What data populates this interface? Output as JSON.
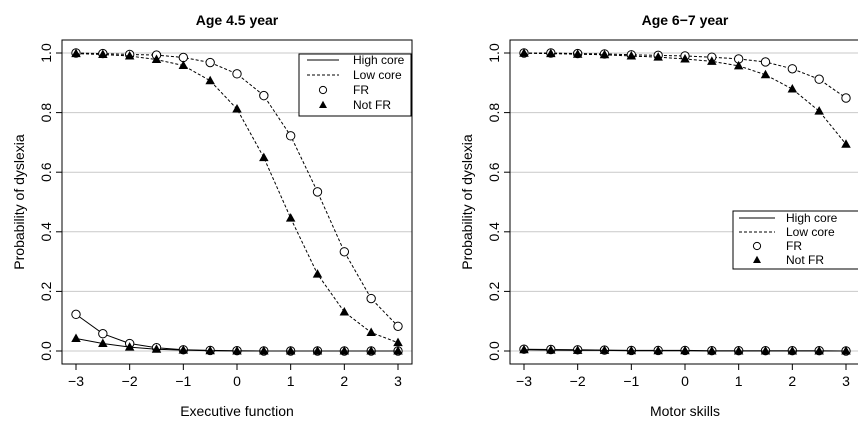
{
  "chart_data": [
    {
      "type": "line",
      "title": "Age 4.5 year",
      "xlabel": "Executive function",
      "ylabel": "Probability of dyslexia",
      "xlim": [
        -3,
        3
      ],
      "ylim": [
        0,
        1
      ],
      "x_ticks": [
        "−3",
        "−2",
        "−1",
        "0",
        "1",
        "2",
        "3"
      ],
      "y_ticks": [
        "0.0",
        "0.2",
        "0.4",
        "0.6",
        "0.8",
        "1.0"
      ],
      "grid": "horizontal",
      "legend_position": "top-right",
      "legend": [
        "High core",
        "Low core",
        "FR",
        "Not FR"
      ],
      "x": [
        -3,
        -2.5,
        -2,
        -1.5,
        -1,
        -0.5,
        0,
        0.5,
        1,
        1.5,
        2,
        2.5,
        3
      ],
      "series": [
        {
          "name": "High core FR",
          "core": "high",
          "group": "FR",
          "marker": "circle",
          "values": [
            0.123,
            0.058,
            0.025,
            0.011,
            0.004,
            0.002,
            0.001,
            0.0,
            0.0,
            0.0,
            0.0,
            0.0,
            0.0
          ]
        },
        {
          "name": "High core Not FR",
          "core": "high",
          "group": "Not FR",
          "marker": "triangle",
          "values": [
            0.042,
            0.025,
            0.013,
            0.006,
            0.003,
            0.001,
            0.0,
            0.0,
            0.0,
            0.0,
            0.0,
            0.0,
            0.0
          ]
        },
        {
          "name": "Low core FR",
          "core": "low",
          "group": "FR",
          "marker": "circle",
          "values": [
            1.0,
            0.998,
            0.995,
            0.993,
            0.985,
            0.968,
            0.93,
            0.857,
            0.722,
            0.534,
            0.333,
            0.176,
            0.083
          ]
        },
        {
          "name": "Low core Not FR",
          "core": "low",
          "group": "Not FR",
          "marker": "triangle",
          "values": [
            0.998,
            0.995,
            0.99,
            0.978,
            0.958,
            0.907,
            0.812,
            0.649,
            0.446,
            0.258,
            0.131,
            0.062,
            0.028
          ]
        }
      ]
    },
    {
      "type": "line",
      "title": "Age 6−7 year",
      "xlabel": "Motor skills",
      "ylabel": "Probability of dyslexia",
      "xlim": [
        -3,
        3
      ],
      "ylim": [
        0,
        1
      ],
      "x_ticks": [
        "−3",
        "−2",
        "−1",
        "0",
        "1",
        "2",
        "3"
      ],
      "y_ticks": [
        "0.0",
        "0.2",
        "0.4",
        "0.6",
        "0.8",
        "1.0"
      ],
      "grid": "horizontal",
      "legend_position": "right",
      "legend": [
        "High core",
        "Low core",
        "FR",
        "Not FR"
      ],
      "x": [
        -3,
        -2.5,
        -2,
        -1.5,
        -1,
        -0.5,
        0,
        0.5,
        1,
        1.5,
        2,
        2.5,
        3
      ],
      "series": [
        {
          "name": "High core FR",
          "core": "high",
          "group": "FR",
          "marker": "circle",
          "values": [
            0.006,
            0.005,
            0.004,
            0.003,
            0.002,
            0.002,
            0.002,
            0.001,
            0.001,
            0.001,
            0.001,
            0.001,
            0.0
          ]
        },
        {
          "name": "High core Not FR",
          "core": "high",
          "group": "Not FR",
          "marker": "triangle",
          "values": [
            0.004,
            0.003,
            0.002,
            0.002,
            0.001,
            0.001,
            0.001,
            0.0,
            0.0,
            0.0,
            0.0,
            0.0,
            0.0
          ]
        },
        {
          "name": "Low core FR",
          "core": "low",
          "group": "FR",
          "marker": "circle",
          "values": [
            1.0,
            1.0,
            0.998,
            0.997,
            0.994,
            0.992,
            0.99,
            0.986,
            0.98,
            0.97,
            0.947,
            0.912,
            0.849
          ]
        },
        {
          "name": "Low core Not FR",
          "core": "low",
          "group": "Not FR",
          "marker": "triangle",
          "values": [
            0.999,
            0.998,
            0.996,
            0.994,
            0.99,
            0.986,
            0.98,
            0.972,
            0.957,
            0.927,
            0.879,
            0.805,
            0.694
          ]
        }
      ]
    }
  ]
}
